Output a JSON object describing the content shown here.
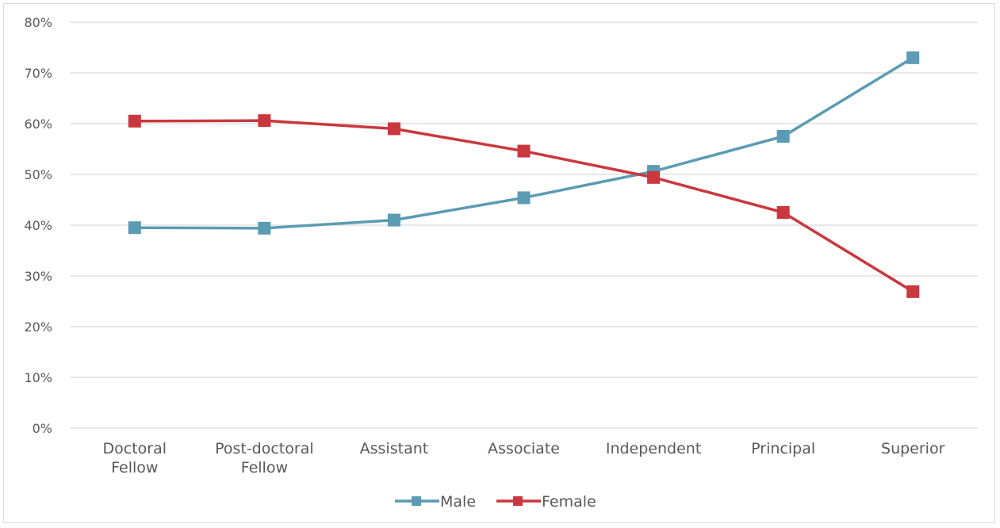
{
  "chart_data": {
    "type": "line",
    "categories": [
      [
        "Doctoral",
        "Fellow"
      ],
      [
        "Post-doctoral",
        "Fellow"
      ],
      [
        "Assistant"
      ],
      [
        "Associate"
      ],
      [
        "Independent"
      ],
      [
        "Principal"
      ],
      [
        "Superior"
      ]
    ],
    "y_ticks": [
      "0%",
      "10%",
      "20%",
      "30%",
      "40%",
      "50%",
      "60%",
      "70%",
      "80%"
    ],
    "ylim": [
      0,
      80
    ],
    "grid": true,
    "legend_position": "bottom",
    "series": [
      {
        "name": "Male",
        "color": "#5b9bb4",
        "values": [
          39.5,
          39.4,
          41.0,
          45.4,
          50.6,
          57.5,
          73.0
        ]
      },
      {
        "name": "Female",
        "color": "#c9383e",
        "values": [
          60.5,
          60.6,
          59.0,
          54.6,
          49.4,
          42.5,
          26.9
        ]
      }
    ]
  }
}
